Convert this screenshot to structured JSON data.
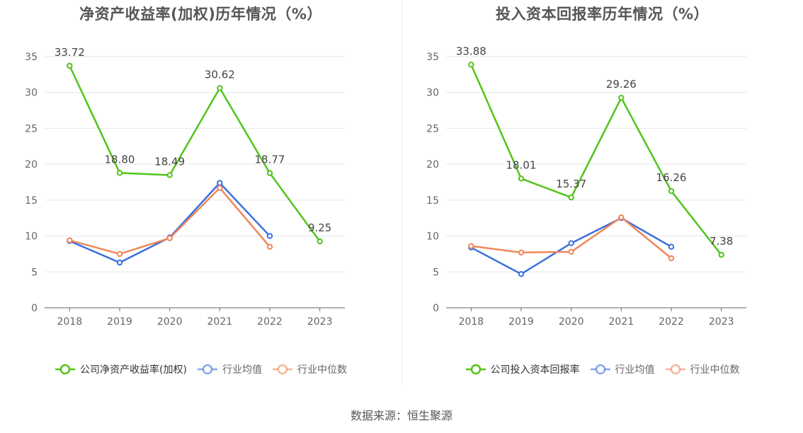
{
  "colors": {
    "company": "#52c41a",
    "industry_avg": "#3b6fe0",
    "industry_median": "#f0875a"
  },
  "source": "数据来源：恒生聚源",
  "chart_data": [
    {
      "type": "line",
      "title": "净资产收益率(加权)历年情况（%）",
      "categories": [
        "2018",
        "2019",
        "2020",
        "2021",
        "2022",
        "2023"
      ],
      "ylim": [
        0,
        35
      ],
      "yticks": [
        0,
        5,
        10,
        15,
        20,
        25,
        30,
        35
      ],
      "grid": true,
      "legend_position": "bottom",
      "series": [
        {
          "name": "公司净资产收益率(加权)",
          "values": [
            33.72,
            18.8,
            18.49,
            30.62,
            18.77,
            9.25
          ],
          "labels": [
            "33.72",
            "18.80",
            "18.49",
            "30.62",
            "18.77",
            "9.25"
          ]
        },
        {
          "name": "行业均值",
          "values": [
            9.3,
            6.3,
            9.8,
            17.4,
            10.0,
            null
          ]
        },
        {
          "name": "行业中位数",
          "values": [
            9.4,
            7.5,
            9.7,
            16.7,
            8.5,
            null
          ]
        }
      ]
    },
    {
      "type": "line",
      "title": "投入资本回报率历年情况（%）",
      "categories": [
        "2018",
        "2019",
        "2020",
        "2021",
        "2022",
        "2023"
      ],
      "ylim": [
        0,
        35
      ],
      "yticks": [
        0,
        5,
        10,
        15,
        20,
        25,
        30,
        35
      ],
      "grid": true,
      "legend_position": "bottom",
      "series": [
        {
          "name": "公司投入资本回报率",
          "values": [
            33.88,
            18.01,
            15.37,
            29.26,
            16.26,
            7.38
          ],
          "labels": [
            "33.88",
            "18.01",
            "15.37",
            "29.26",
            "16.26",
            "7.38"
          ]
        },
        {
          "name": "行业均值",
          "values": [
            8.4,
            4.7,
            9.0,
            12.5,
            8.5,
            null
          ]
        },
        {
          "name": "行业中位数",
          "values": [
            8.6,
            7.7,
            7.8,
            12.6,
            6.9,
            null
          ]
        }
      ]
    }
  ]
}
